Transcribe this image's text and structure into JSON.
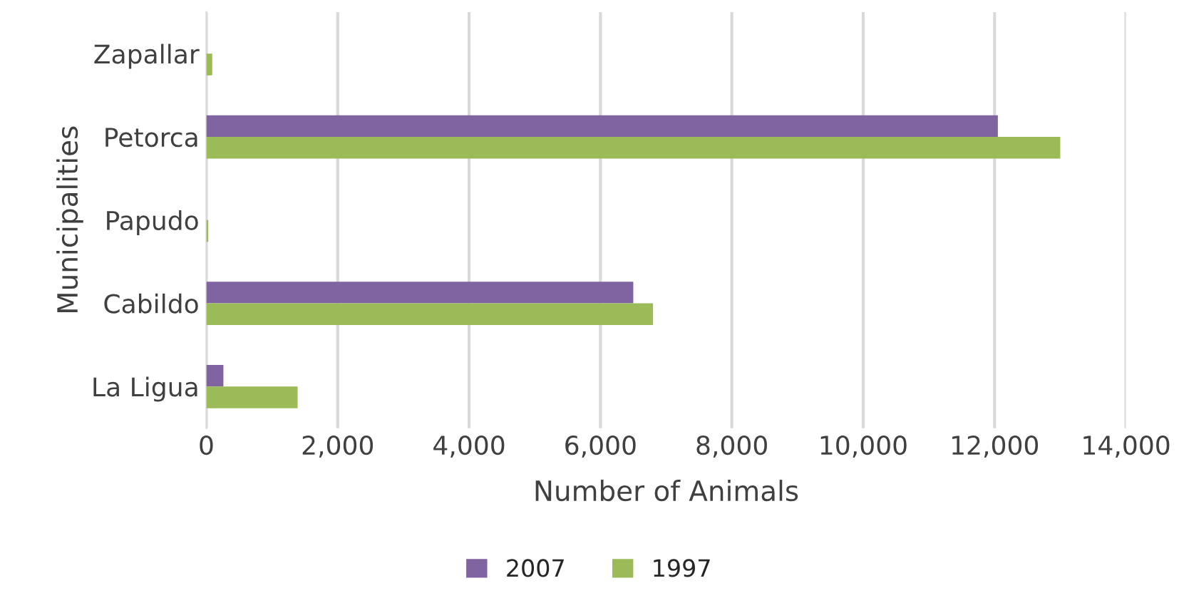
{
  "chart_data": {
    "type": "bar",
    "orientation": "horizontal",
    "xlabel": "Number of Animals",
    "ylabel": "Municipalities",
    "categories": [
      "Zapallar",
      "Petorca",
      "Papudo",
      "Cabildo",
      "La Ligua"
    ],
    "series": [
      {
        "name": "2007",
        "color": "#8064a2",
        "values": [
          null,
          12050,
          null,
          6500,
          260
        ]
      },
      {
        "name": "1997",
        "color": "#9bbb59",
        "values": [
          90,
          13000,
          30,
          6800,
          1390
        ]
      }
    ],
    "xlim": [
      0,
      14000
    ],
    "xticks": [
      {
        "value": 0,
        "label": "0"
      },
      {
        "value": 2000,
        "label": "2,000"
      },
      {
        "value": 4000,
        "label": "4,000"
      },
      {
        "value": 6000,
        "label": "6,000"
      },
      {
        "value": 8000,
        "label": "8,000"
      },
      {
        "value": 10000,
        "label": "10,000"
      },
      {
        "value": 12000,
        "label": "12,000"
      },
      {
        "value": 14000,
        "label": "14,000"
      }
    ],
    "grid": "x",
    "legend": "bottom"
  }
}
